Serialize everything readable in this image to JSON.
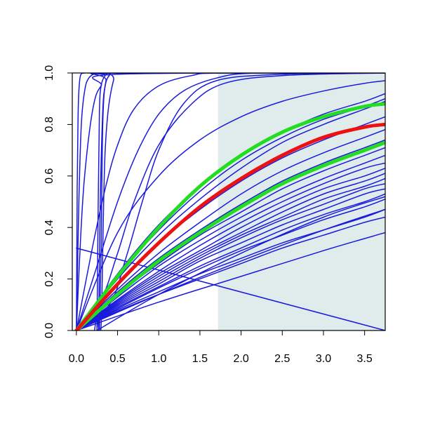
{
  "chart_data": {
    "type": "line",
    "title": "",
    "xlabel": "",
    "ylabel": "",
    "xlim": [
      -0.05,
      3.75
    ],
    "ylim": [
      0.0,
      1.0
    ],
    "grid": false,
    "legend": "none",
    "x_ticks": [
      {
        "value": 0.0,
        "label": "0.0"
      },
      {
        "value": 0.5,
        "label": "0.5"
      },
      {
        "value": 1.0,
        "label": "1.0"
      },
      {
        "value": 1.5,
        "label": "1.5"
      },
      {
        "value": 2.0,
        "label": "2.0"
      },
      {
        "value": 2.5,
        "label": "2.5"
      },
      {
        "value": 3.0,
        "label": "3.0"
      },
      {
        "value": 3.5,
        "label": "3.5"
      }
    ],
    "y_ticks": [
      {
        "value": 0.0,
        "label": "0.0"
      },
      {
        "value": 0.2,
        "label": "0.2"
      },
      {
        "value": 0.4,
        "label": "0.4"
      },
      {
        "value": 0.6,
        "label": "0.6"
      },
      {
        "value": 0.8,
        "label": "0.8"
      },
      {
        "value": 1.0,
        "label": "1.0"
      }
    ],
    "shaded_region": {
      "x": [
        1.72,
        3.75
      ],
      "color": "#e0ecec"
    },
    "colors": {
      "blue": "#1a1adc",
      "red": "#ee1111",
      "green": "#22dd22",
      "black": "#000000"
    },
    "series": [
      {
        "color": "blue",
        "width": 1.5,
        "x": [
          0.0,
          3.75
        ],
        "y": [
          0.32,
          0.0
        ]
      },
      {
        "color": "blue",
        "width": 1.5,
        "x": [
          0.0,
          0.01,
          0.02,
          0.03,
          0.05,
          0.1,
          0.2,
          0.5,
          3.75
        ],
        "y": [
          0.0,
          0.55,
          0.82,
          0.93,
          0.99,
          1.0,
          1.0,
          1.0,
          1.0
        ]
      },
      {
        "color": "blue",
        "width": 1.5,
        "x": [
          0.0,
          0.03,
          0.06,
          0.1,
          0.15,
          0.25,
          0.4,
          3.75
        ],
        "y": [
          0.0,
          0.5,
          0.8,
          0.93,
          0.98,
          1.0,
          1.0,
          1.0
        ]
      },
      {
        "color": "blue",
        "width": 1.5,
        "x": [
          0.0,
          0.05,
          0.1,
          0.2,
          0.3,
          0.5,
          3.75
        ],
        "y": [
          0.0,
          0.35,
          0.6,
          0.86,
          0.95,
          0.995,
          1.0
        ]
      },
      {
        "color": "blue",
        "width": 1.5,
        "x": [
          0.25,
          0.265,
          0.28,
          0.3,
          0.35,
          0.4,
          0.5,
          3.75
        ],
        "y": [
          0.0,
          0.5,
          0.85,
          0.95,
          0.99,
          1.0,
          1.0,
          1.0
        ]
      },
      {
        "color": "blue",
        "width": 1.5,
        "x": [
          0.27,
          0.29,
          0.32,
          0.35,
          0.4,
          0.5,
          3.75
        ],
        "y": [
          0.0,
          0.5,
          0.85,
          0.95,
          0.99,
          1.0,
          1.0
        ]
      },
      {
        "color": "blue",
        "width": 1.5,
        "x": [
          0.22,
          0.25,
          0.3,
          0.35,
          0.45,
          0.6,
          3.75
        ],
        "y": [
          0.0,
          0.05,
          0.02,
          0.7,
          0.97,
          1.0,
          1.0
        ]
      },
      {
        "color": "blue",
        "width": 1.5,
        "x": [
          0.28,
          0.3,
          0.32,
          0.36,
          0.45,
          3.75
        ],
        "y": [
          0.0,
          0.3,
          0.8,
          0.97,
          1.0,
          1.0
        ]
      },
      {
        "color": "blue",
        "width": 1.5,
        "x": [
          0.0,
          0.2,
          0.35,
          0.5,
          0.7,
          1.0,
          1.4,
          1.8,
          3.75
        ],
        "y": [
          0.0,
          0.33,
          0.55,
          0.72,
          0.86,
          0.95,
          0.99,
          1.0,
          1.0
        ]
      },
      {
        "color": "blue",
        "width": 1.5,
        "x": [
          0.0,
          0.25,
          0.5,
          0.75,
          1.0,
          1.3,
          1.7,
          2.2,
          3.75
        ],
        "y": [
          0.0,
          0.25,
          0.5,
          0.7,
          0.84,
          0.93,
          0.98,
          1.0,
          1.0
        ]
      },
      {
        "color": "blue",
        "width": 1.5,
        "x": [
          0.0,
          0.3,
          0.5,
          0.7,
          1.0,
          1.4,
          1.8,
          2.5,
          3.75
        ],
        "y": [
          0.0,
          0.12,
          0.3,
          0.5,
          0.72,
          0.88,
          0.96,
          0.99,
          1.0
        ]
      },
      {
        "color": "blue",
        "width": 1.5,
        "x": [
          0.0,
          0.4,
          0.6,
          0.8,
          1.0,
          1.3,
          1.7,
          2.5,
          3.75
        ],
        "y": [
          0.0,
          0.1,
          0.28,
          0.5,
          0.7,
          0.88,
          0.97,
          0.995,
          1.0
        ]
      },
      {
        "color": "blue",
        "width": 1.5,
        "x": [
          0.0,
          0.5,
          1.0,
          1.5,
          2.0,
          2.5,
          3.0,
          3.5,
          3.75
        ],
        "y": [
          0.0,
          0.38,
          0.6,
          0.74,
          0.83,
          0.89,
          0.93,
          0.96,
          0.97
        ]
      },
      {
        "color": "blue",
        "width": 1.5,
        "x": [
          0.0,
          0.5,
          1.0,
          1.5,
          2.0,
          2.5,
          3.0,
          3.5,
          3.75
        ],
        "y": [
          0.0,
          0.22,
          0.41,
          0.56,
          0.68,
          0.77,
          0.84,
          0.89,
          0.92
        ]
      },
      {
        "color": "blue",
        "width": 1.5,
        "x": [
          0.0,
          0.5,
          1.0,
          1.5,
          2.0,
          2.5,
          3.0,
          3.5,
          3.75
        ],
        "y": [
          0.0,
          0.21,
          0.39,
          0.54,
          0.66,
          0.75,
          0.82,
          0.87,
          0.9
        ]
      },
      {
        "color": "blue",
        "width": 1.5,
        "x": [
          0.0,
          0.5,
          1.0,
          1.5,
          2.0,
          2.5,
          3.0,
          3.5,
          3.75
        ],
        "y": [
          0.0,
          0.2,
          0.37,
          0.51,
          0.63,
          0.73,
          0.8,
          0.86,
          0.89
        ]
      },
      {
        "color": "blue",
        "width": 1.5,
        "x": [
          0.0,
          0.5,
          1.0,
          1.5,
          2.0,
          2.5,
          3.0,
          3.5,
          3.75
        ],
        "y": [
          0.0,
          0.18,
          0.34,
          0.47,
          0.58,
          0.67,
          0.74,
          0.8,
          0.83
        ]
      },
      {
        "color": "blue",
        "width": 1.5,
        "x": [
          0.0,
          0.5,
          1.0,
          1.5,
          2.0,
          2.5,
          3.0,
          3.5,
          3.75
        ],
        "y": [
          0.0,
          0.16,
          0.3,
          0.42,
          0.53,
          0.62,
          0.69,
          0.75,
          0.78
        ]
      },
      {
        "color": "blue",
        "width": 1.5,
        "x": [
          0.0,
          0.5,
          1.0,
          1.5,
          2.0,
          2.5,
          3.0,
          3.5,
          3.75
        ],
        "y": [
          0.0,
          0.15,
          0.28,
          0.39,
          0.49,
          0.58,
          0.65,
          0.71,
          0.74
        ]
      },
      {
        "color": "blue",
        "width": 1.5,
        "x": [
          0.0,
          0.5,
          1.0,
          1.5,
          2.0,
          2.5,
          3.0,
          3.5,
          3.75
        ],
        "y": [
          0.0,
          0.14,
          0.26,
          0.37,
          0.46,
          0.55,
          0.62,
          0.68,
          0.71
        ]
      },
      {
        "color": "blue",
        "width": 1.5,
        "x": [
          0.0,
          0.5,
          1.0,
          1.5,
          2.0,
          2.5,
          3.0,
          3.5,
          3.75
        ],
        "y": [
          0.0,
          0.13,
          0.25,
          0.35,
          0.44,
          0.52,
          0.59,
          0.65,
          0.68
        ]
      },
      {
        "color": "blue",
        "width": 1.5,
        "x": [
          0.0,
          0.5,
          1.0,
          1.5,
          2.0,
          2.5,
          3.0,
          3.5,
          3.75
        ],
        "y": [
          0.0,
          0.12,
          0.23,
          0.33,
          0.42,
          0.5,
          0.57,
          0.63,
          0.65
        ]
      },
      {
        "color": "blue",
        "width": 1.5,
        "x": [
          0.0,
          0.5,
          1.0,
          1.5,
          2.0,
          2.5,
          3.0,
          3.5,
          3.75
        ],
        "y": [
          0.0,
          0.115,
          0.22,
          0.31,
          0.4,
          0.48,
          0.55,
          0.6,
          0.63
        ]
      },
      {
        "color": "blue",
        "width": 1.5,
        "x": [
          0.0,
          0.5,
          1.0,
          1.5,
          2.0,
          2.5,
          3.0,
          3.5,
          3.75
        ],
        "y": [
          0.0,
          0.11,
          0.21,
          0.3,
          0.38,
          0.46,
          0.53,
          0.58,
          0.61
        ]
      },
      {
        "color": "blue",
        "width": 1.5,
        "x": [
          0.0,
          0.5,
          1.0,
          1.5,
          2.0,
          2.5,
          3.0,
          3.5,
          3.75
        ],
        "y": [
          0.0,
          0.105,
          0.2,
          0.29,
          0.37,
          0.44,
          0.51,
          0.56,
          0.59
        ]
      },
      {
        "color": "blue",
        "width": 1.5,
        "x": [
          0.0,
          0.5,
          1.0,
          1.5,
          2.0,
          2.5,
          3.0,
          3.5,
          3.75
        ],
        "y": [
          0.0,
          0.1,
          0.19,
          0.28,
          0.36,
          0.43,
          0.49,
          0.55,
          0.57
        ]
      },
      {
        "color": "blue",
        "width": 1.5,
        "x": [
          0.0,
          0.5,
          1.0,
          1.5,
          2.0,
          2.5,
          3.0,
          3.5,
          3.75
        ],
        "y": [
          0.0,
          0.095,
          0.18,
          0.27,
          0.34,
          0.41,
          0.47,
          0.53,
          0.55
        ]
      },
      {
        "color": "blue",
        "width": 1.5,
        "x": [
          0.0,
          0.5,
          1.0,
          1.5,
          2.0,
          2.5,
          3.0,
          3.5,
          3.75
        ],
        "y": [
          0.0,
          0.09,
          0.17,
          0.25,
          0.32,
          0.39,
          0.45,
          0.5,
          0.53
        ]
      },
      {
        "color": "blue",
        "width": 1.5,
        "x": [
          0.0,
          0.5,
          1.0,
          1.5,
          2.0,
          2.5,
          3.0,
          3.5,
          3.75
        ],
        "y": [
          0.0,
          0.085,
          0.165,
          0.24,
          0.31,
          0.37,
          0.43,
          0.48,
          0.51
        ]
      },
      {
        "color": "blue",
        "width": 1.5,
        "x": [
          0.0,
          0.5,
          1.0,
          1.5,
          2.0,
          2.5,
          3.0,
          3.5,
          3.75
        ],
        "y": [
          0.0,
          0.075,
          0.14,
          0.2,
          0.26,
          0.32,
          0.37,
          0.42,
          0.44
        ]
      },
      {
        "color": "blue",
        "width": 1.5,
        "x": [
          0.0,
          0.5,
          1.0,
          1.5,
          2.0,
          2.5,
          3.0,
          3.5,
          3.75
        ],
        "y": [
          0.0,
          0.08,
          0.15,
          0.22,
          0.28,
          0.34,
          0.39,
          0.44,
          0.47
        ]
      },
      {
        "color": "blue",
        "width": 1.5,
        "x": [
          0.0,
          1.0,
          2.0,
          3.0,
          3.75
        ],
        "y": [
          0.0,
          0.11,
          0.21,
          0.31,
          0.38
        ]
      },
      {
        "color": "blue",
        "width": 1.5,
        "x": [
          0.0,
          1.0,
          2.0,
          3.0,
          3.75
        ],
        "y": [
          0.0,
          0.14,
          0.27,
          0.39,
          0.47
        ]
      },
      {
        "color": "blue",
        "width": 1.5,
        "x": [
          0.25,
          1.0,
          2.0,
          3.0,
          3.75
        ],
        "y": [
          0.0,
          0.14,
          0.3,
          0.44,
          0.52
        ]
      },
      {
        "color": "green",
        "width": 5,
        "x": [
          0.0,
          0.5,
          1.0,
          1.5,
          2.0,
          2.5,
          3.0,
          3.5,
          3.75
        ],
        "y": [
          0.0,
          0.21,
          0.4,
          0.56,
          0.68,
          0.77,
          0.83,
          0.87,
          0.88
        ]
      },
      {
        "color": "green",
        "width": 5,
        "x": [
          0.0,
          0.5,
          1.0,
          1.5,
          2.0,
          2.5,
          3.0,
          3.5,
          3.75
        ],
        "y": [
          0.0,
          0.14,
          0.27,
          0.38,
          0.48,
          0.57,
          0.64,
          0.7,
          0.73
        ]
      },
      {
        "color": "red",
        "width": 5,
        "x": [
          0.0,
          0.5,
          1.0,
          1.5,
          2.0,
          2.5,
          3.0,
          3.5,
          3.75
        ],
        "y": [
          0.0,
          0.18,
          0.34,
          0.48,
          0.59,
          0.68,
          0.75,
          0.79,
          0.8
        ]
      }
    ]
  }
}
